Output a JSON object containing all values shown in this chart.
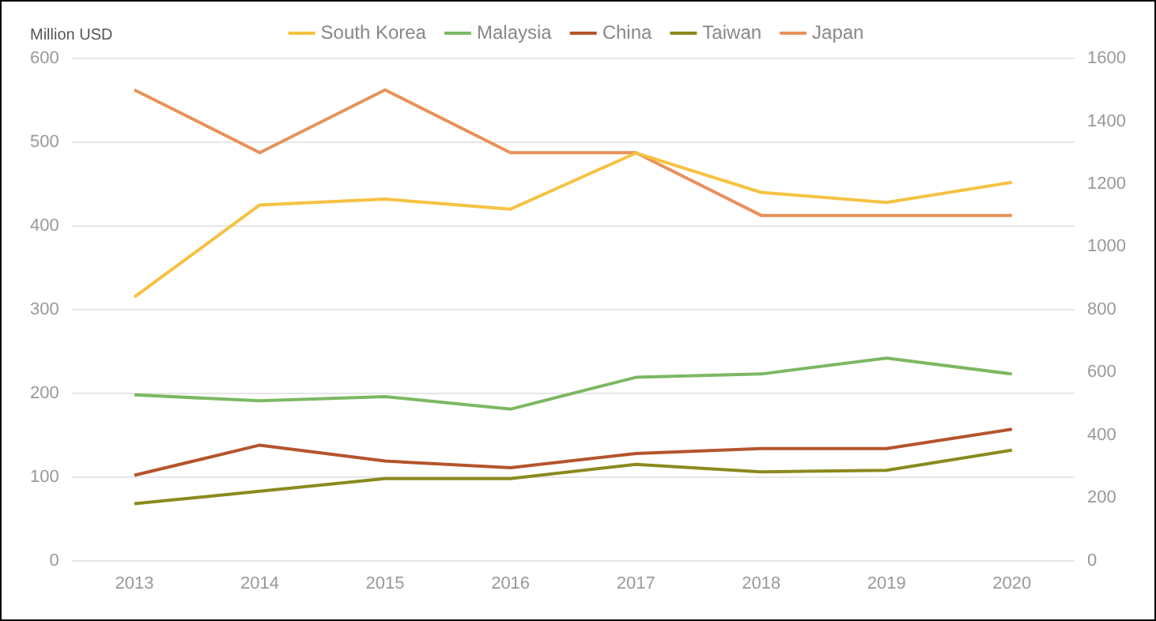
{
  "chart_data": {
    "type": "line",
    "ylabel": "Million USD",
    "categories": [
      "2013",
      "2014",
      "2015",
      "2016",
      "2017",
      "2018",
      "2019",
      "2020"
    ],
    "series": [
      {
        "name": "South Korea",
        "color": "#f5c242",
        "values": [
          315,
          425,
          432,
          420,
          487,
          440,
          428,
          452
        ]
      },
      {
        "name": "Malaysia",
        "color": "#7cb862",
        "values": [
          198,
          191,
          196,
          181,
          219,
          223,
          242,
          223
        ]
      },
      {
        "name": "China",
        "color": "#b5542c",
        "values": [
          102,
          138,
          119,
          111,
          128,
          134,
          134,
          157
        ]
      },
      {
        "name": "Taiwan",
        "color": "#8a8a1e",
        "values": [
          68,
          83,
          98,
          98,
          115,
          106,
          108,
          132
        ]
      },
      {
        "name": "Japan",
        "color": "#e8915a",
        "axis": "y2",
        "values": [
          1500,
          1300,
          1500,
          1300,
          1300,
          1100,
          1100,
          1100
        ]
      }
    ],
    "ylim": [
      0,
      600
    ],
    "yticks": [
      0,
      100,
      200,
      300,
      400,
      500,
      600
    ],
    "y2lim": [
      0,
      1600
    ],
    "y2ticks": [
      0,
      200,
      400,
      600,
      800,
      1000,
      1200,
      1400,
      1600
    ],
    "grid": "y",
    "legend": "top",
    "marker": "none",
    "line_style": "solid"
  }
}
